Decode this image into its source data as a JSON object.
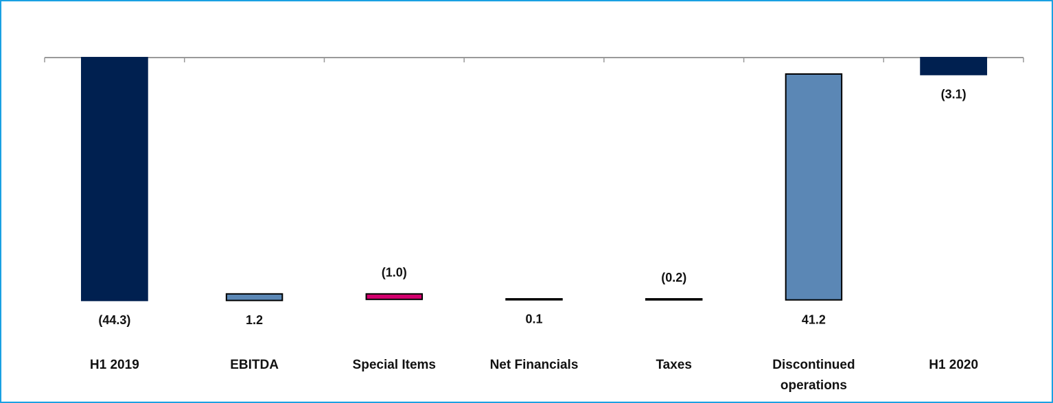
{
  "chart_data": {
    "type": "waterfall",
    "categories": [
      "H1 2019",
      "EBITDA",
      "Special Items",
      "Net Financials",
      "Taxes",
      "Discontinued operations",
      "H1 2020"
    ],
    "values": [
      -44.3,
      1.2,
      -1.0,
      0.1,
      -0.2,
      41.2,
      -3.1
    ],
    "value_labels": [
      "(44.3)",
      "1.2",
      "(1.0)",
      "0.1",
      "(0.2)",
      "41.2",
      "(3.1)"
    ],
    "measure": [
      "total",
      "relative",
      "relative",
      "relative",
      "relative",
      "relative",
      "total"
    ],
    "colors": [
      "#002050",
      "#5b87b5",
      "#d4006f",
      "#5b87b5",
      "#d4006f",
      "#5b87b5",
      "#002050"
    ],
    "ylim": [
      -50,
      0
    ]
  }
}
